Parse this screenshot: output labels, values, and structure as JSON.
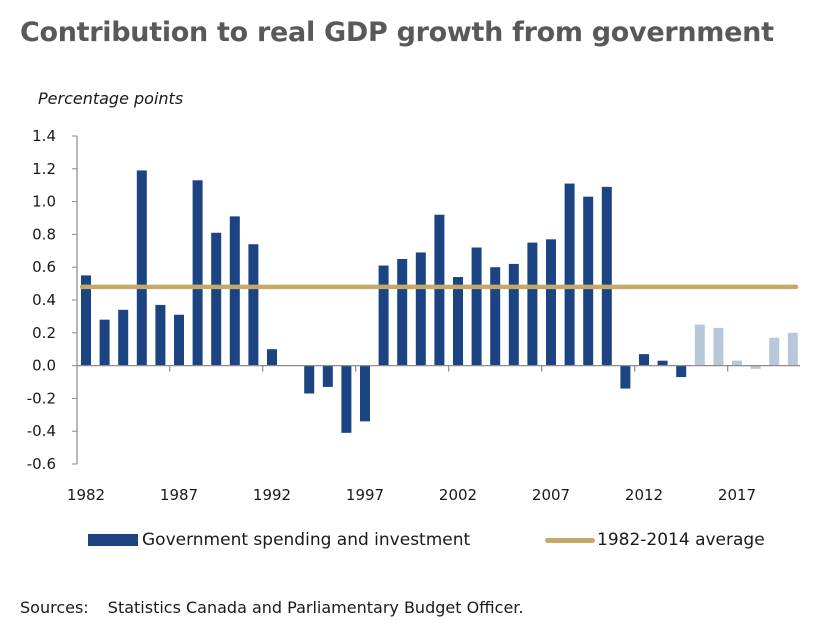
{
  "chart_data": {
    "type": "bar",
    "title": "Contribution to real GDP growth from government",
    "ylabel": "Percentage points",
    "xlabel": "",
    "ylim": [
      -0.6,
      1.4
    ],
    "yticks": [
      1.4,
      1.2,
      1.0,
      0.8,
      0.6,
      0.4,
      0.2,
      0.0,
      -0.2,
      -0.4,
      -0.6
    ],
    "ytick_labels": [
      "1.4",
      "1.2",
      "1.0",
      "0.8",
      "0.6",
      "0.4",
      "0.2",
      "0.0",
      "-0.2",
      "-0.4",
      "-0.6"
    ],
    "xtick_labels": [
      "1982",
      "1987",
      "1992",
      "1997",
      "2002",
      "2007",
      "2012",
      "2017"
    ],
    "grid": false,
    "legend_position": "bottom",
    "categories": [
      1982,
      1983,
      1984,
      1985,
      1986,
      1987,
      1988,
      1989,
      1990,
      1991,
      1992,
      1993,
      1994,
      1995,
      1996,
      1997,
      1998,
      1999,
      2000,
      2001,
      2002,
      2003,
      2004,
      2005,
      2006,
      2007,
      2008,
      2009,
      2010,
      2011,
      2012,
      2013,
      2014,
      2015,
      2016,
      2017,
      2018,
      2019,
      2020
    ],
    "series": [
      {
        "name": "Government spending and investment",
        "type": "bar",
        "color": "#1c4482",
        "projection_color": "#b9c7da",
        "projection_from": 2015,
        "values": [
          0.55,
          0.28,
          0.34,
          1.19,
          0.37,
          0.31,
          1.13,
          0.81,
          0.91,
          0.74,
          0.1,
          0.0,
          -0.17,
          -0.13,
          -0.41,
          -0.34,
          0.61,
          0.65,
          0.69,
          0.92,
          0.54,
          0.72,
          0.6,
          0.62,
          0.75,
          0.77,
          1.11,
          1.03,
          1.09,
          -0.14,
          0.07,
          0.03,
          -0.07,
          0.25,
          0.23,
          0.03,
          -0.02,
          0.17,
          0.2
        ]
      },
      {
        "name": "1982-2014 average",
        "type": "line",
        "color": "#c4a96a",
        "value": 0.48
      }
    ]
  },
  "legend": {
    "bars_label": "Government spending and investment",
    "line_label": "1982-2014 average"
  },
  "sources": {
    "label": "Sources:",
    "text": "Statistics Canada and Parliamentary Budget Officer."
  }
}
